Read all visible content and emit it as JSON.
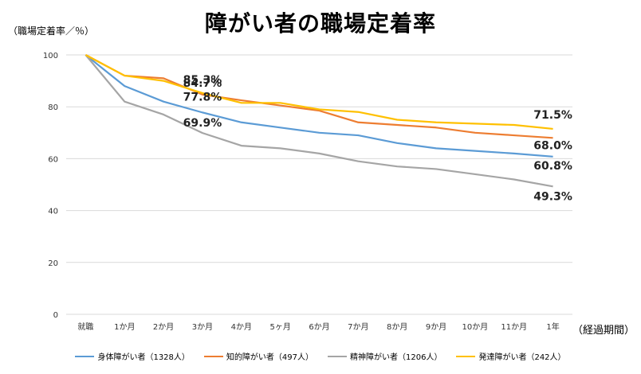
{
  "chart_data": {
    "type": "line",
    "title": "障がい者の職場定着率",
    "ylabel": "（職場定着率／％）",
    "xlabel": "（経過期間）",
    "ylim": [
      0,
      100
    ],
    "yticks": [
      0,
      20,
      40,
      60,
      80,
      100
    ],
    "categories": [
      "就職",
      "1か月",
      "2か月",
      "3か月",
      "4か月",
      "5ヶ月",
      "6か月",
      "7か月",
      "8か月",
      "9か月",
      "10か月",
      "11か月",
      "1年"
    ],
    "series": [
      {
        "name": "身体障がい者（1328人）",
        "color": "#5b9bd5",
        "values": [
          100,
          88,
          82,
          77.8,
          74,
          72,
          70,
          69,
          66,
          64,
          63,
          62,
          60.8
        ]
      },
      {
        "name": "知的障がい者（497人）",
        "color": "#ed7d31",
        "values": [
          100,
          92,
          91,
          84.7,
          82.5,
          80.5,
          78.5,
          74,
          73,
          72,
          70,
          69,
          68.0
        ]
      },
      {
        "name": "精神障がい者（1206人）",
        "color": "#a5a5a5",
        "values": [
          100,
          82,
          77,
          69.9,
          65,
          64,
          62,
          59,
          57,
          56,
          54,
          52,
          49.3
        ]
      },
      {
        "name": "発達障がい者（242人）",
        "color": "#ffc000",
        "values": [
          100,
          92,
          90,
          85.3,
          81.5,
          81.5,
          79,
          78,
          75,
          74,
          73.5,
          73,
          71.5
        ]
      }
    ],
    "annotations": [
      {
        "text": "85.3%",
        "category": "3か月",
        "value": 85.3
      },
      {
        "text": "84.7%",
        "category": "3か月",
        "value": 84.7
      },
      {
        "text": "77.8%",
        "category": "3か月",
        "value": 77.8
      },
      {
        "text": "69.9%",
        "category": "3か月",
        "value": 69.9
      },
      {
        "text": "71.5%",
        "category": "1年",
        "value": 71.5
      },
      {
        "text": "68.0%",
        "category": "1年",
        "value": 68.0
      },
      {
        "text": "60.8%",
        "category": "1年",
        "value": 60.8
      },
      {
        "text": "49.3%",
        "category": "1年",
        "value": 49.3
      }
    ],
    "grid": true,
    "legend_position": "bottom"
  }
}
